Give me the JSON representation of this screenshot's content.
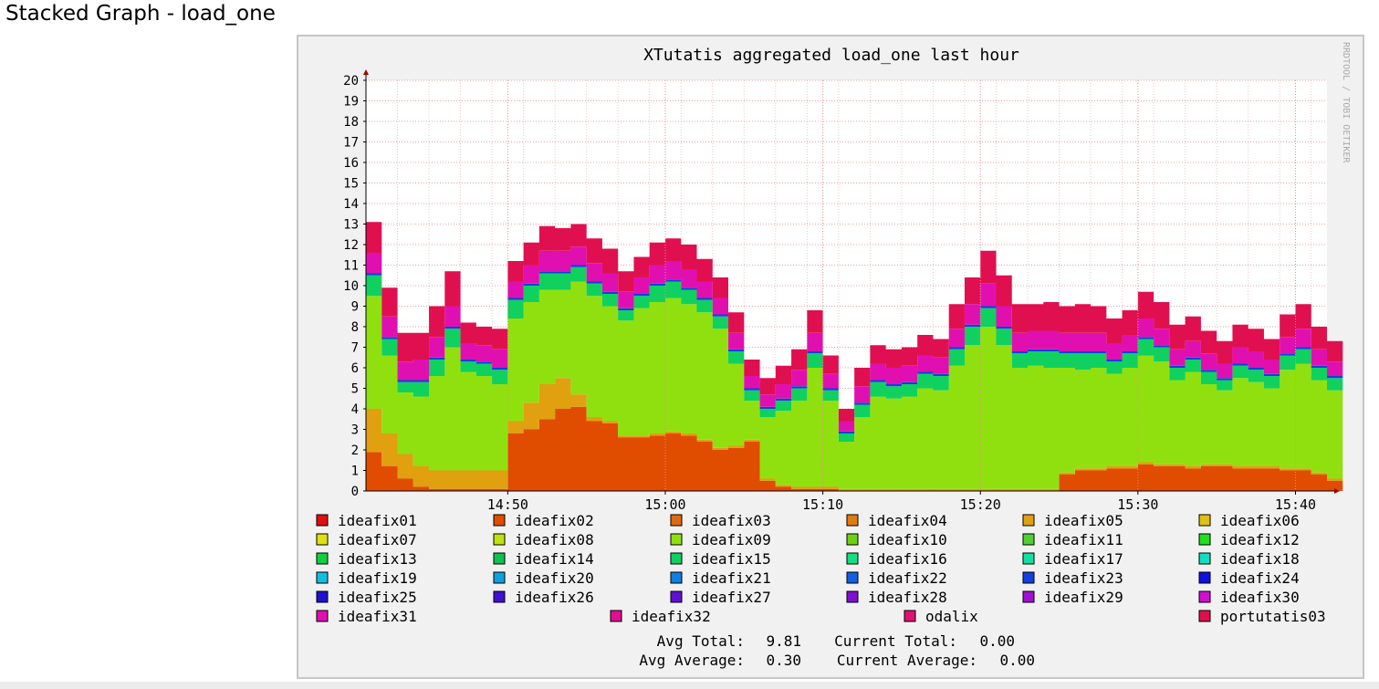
{
  "page": {
    "heading": "Stacked Graph - load_one"
  },
  "watermark": "RRDTOOL / TOBI OETIKER",
  "chart_data": {
    "type": "area",
    "stacked": true,
    "title": "XTutatis aggregated load_one last hour",
    "xlabel": "",
    "ylabel": "",
    "ylim": [
      0,
      20
    ],
    "yticks": [
      0,
      1,
      2,
      3,
      4,
      5,
      6,
      7,
      8,
      9,
      10,
      11,
      12,
      13,
      14,
      15,
      16,
      17,
      18,
      19,
      20
    ],
    "xlim": [
      "14:41",
      "15:42"
    ],
    "xticks": [
      "14:50",
      "15:00",
      "15:10",
      "15:20",
      "15:30",
      "15:40"
    ],
    "grid": true,
    "legend_placement": "bottom",
    "x": [
      "14:41",
      "14:42",
      "14:43",
      "14:44",
      "14:45",
      "14:46",
      "14:47",
      "14:48",
      "14:49",
      "14:50",
      "14:51",
      "14:52",
      "14:53",
      "14:54",
      "14:55",
      "14:56",
      "14:57",
      "14:58",
      "14:59",
      "15:00",
      "15:01",
      "15:02",
      "15:03",
      "15:04",
      "15:05",
      "15:06",
      "15:07",
      "15:08",
      "15:09",
      "15:10",
      "15:11",
      "15:12",
      "15:13",
      "15:14",
      "15:15",
      "15:16",
      "15:17",
      "15:18",
      "15:19",
      "15:20",
      "15:21",
      "15:22",
      "15:23",
      "15:24",
      "15:25",
      "15:26",
      "15:27",
      "15:28",
      "15:29",
      "15:30",
      "15:31",
      "15:32",
      "15:33",
      "15:34",
      "15:35",
      "15:36",
      "15:37",
      "15:38",
      "15:39",
      "15:40",
      "15:41",
      "15:42"
    ],
    "legend": [
      {
        "name": "ideafix01",
        "color": "#e01010"
      },
      {
        "name": "ideafix02",
        "color": "#e04c00"
      },
      {
        "name": "ideafix03",
        "color": "#e06a10"
      },
      {
        "name": "ideafix04",
        "color": "#e07c10"
      },
      {
        "name": "ideafix05",
        "color": "#e0a010"
      },
      {
        "name": "ideafix06",
        "color": "#e0c010"
      },
      {
        "name": "ideafix07",
        "color": "#e0e010"
      },
      {
        "name": "ideafix08",
        "color": "#c0e010"
      },
      {
        "name": "ideafix09",
        "color": "#90e010"
      },
      {
        "name": "ideafix10",
        "color": "#70d010"
      },
      {
        "name": "ideafix11",
        "color": "#50d030"
      },
      {
        "name": "ideafix12",
        "color": "#20e020"
      },
      {
        "name": "ideafix13",
        "color": "#10d040"
      },
      {
        "name": "ideafix14",
        "color": "#10c050"
      },
      {
        "name": "ideafix15",
        "color": "#10d060"
      },
      {
        "name": "ideafix16",
        "color": "#10e080"
      },
      {
        "name": "ideafix17",
        "color": "#10e0a0"
      },
      {
        "name": "ideafix18",
        "color": "#10e0c0"
      },
      {
        "name": "ideafix19",
        "color": "#10c0e0"
      },
      {
        "name": "ideafix20",
        "color": "#10a0e0"
      },
      {
        "name": "ideafix21",
        "color": "#1080e0"
      },
      {
        "name": "ideafix22",
        "color": "#1060e0"
      },
      {
        "name": "ideafix23",
        "color": "#1040e0"
      },
      {
        "name": "ideafix24",
        "color": "#1010e0"
      },
      {
        "name": "ideafix25",
        "color": "#2010d0"
      },
      {
        "name": "ideafix26",
        "color": "#4010d0"
      },
      {
        "name": "ideafix27",
        "color": "#6010d0"
      },
      {
        "name": "ideafix28",
        "color": "#8010d0"
      },
      {
        "name": "ideafix29",
        "color": "#a010d0"
      },
      {
        "name": "ideafix30",
        "color": "#d010d0"
      },
      {
        "name": "ideafix31",
        "color": "#e010b0"
      },
      {
        "name": "ideafix32",
        "color": "#e01090"
      },
      {
        "name": "odalix",
        "color": "#e01070"
      },
      {
        "name": "portutatis03",
        "color": "#e01050"
      }
    ],
    "series": [
      {
        "name": "ideafix02",
        "color": "#e04c00",
        "values": [
          1.9,
          1.2,
          0.6,
          0.2,
          0.1,
          0.1,
          0.1,
          0.1,
          0.1,
          2.8,
          3.0,
          3.5,
          4.0,
          4.1,
          3.4,
          3.3,
          2.6,
          2.6,
          2.7,
          2.8,
          2.7,
          2.4,
          2.0,
          2.1,
          2.4,
          0.5,
          0.2,
          0.1,
          0.1,
          0.1,
          0.0,
          0.0,
          0.0,
          0.0,
          0.0,
          0.0,
          0.0,
          0.0,
          0.0,
          0.0,
          0.0,
          0.0,
          0.0,
          0.0,
          0.8,
          1.0,
          1.0,
          1.1,
          1.1,
          1.3,
          1.2,
          1.2,
          1.1,
          1.2,
          1.2,
          1.1,
          1.1,
          1.1,
          1.0,
          1.0,
          0.8,
          0.5
        ]
      },
      {
        "name": "ideafix05",
        "color": "#e0a010",
        "values": [
          2.1,
          1.6,
          1.2,
          1.0,
          0.9,
          0.9,
          0.9,
          0.9,
          0.9,
          0.6,
          1.3,
          1.7,
          1.5,
          0.6,
          0.2,
          0.1,
          0.1,
          0.1,
          0.1,
          0.1,
          0.1,
          0.1,
          0.1,
          0.1,
          0.1,
          0.1,
          0.1,
          0.1,
          0.1,
          0.1,
          0.1,
          0.1,
          0.1,
          0.1,
          0.1,
          0.1,
          0.1,
          0.1,
          0.1,
          0.1,
          0.1,
          0.1,
          0.1,
          0.1,
          0.1,
          0.1,
          0.1,
          0.1,
          0.1,
          0.1,
          0.1,
          0.1,
          0.1,
          0.1,
          0.1,
          0.1,
          0.1,
          0.1,
          0.1,
          0.1,
          0.1,
          0.1
        ]
      },
      {
        "name": "ideafix09",
        "color": "#90e010",
        "values": [
          5.5,
          3.8,
          3.0,
          3.4,
          4.6,
          6.0,
          4.8,
          4.6,
          4.2,
          5.0,
          4.9,
          4.6,
          4.3,
          5.5,
          5.9,
          5.6,
          5.6,
          6.2,
          6.4,
          6.5,
          6.3,
          6.2,
          5.8,
          4.0,
          1.9,
          3.0,
          3.6,
          4.2,
          5.8,
          4.2,
          2.3,
          3.5,
          4.5,
          4.4,
          4.5,
          4.9,
          4.8,
          6.0,
          7.0,
          7.9,
          7.0,
          5.9,
          6.0,
          5.9,
          5.1,
          4.8,
          4.9,
          4.5,
          4.8,
          5.2,
          5.0,
          4.1,
          4.6,
          3.9,
          3.6,
          4.3,
          4.1,
          3.8,
          4.8,
          5.1,
          4.5,
          4.3
        ]
      },
      {
        "name": "ideafix15",
        "color": "#10d060",
        "values": [
          1.0,
          0.8,
          0.5,
          0.7,
          0.8,
          0.9,
          0.5,
          0.6,
          0.7,
          0.9,
          0.8,
          0.8,
          0.8,
          0.7,
          0.6,
          0.6,
          0.5,
          0.6,
          0.8,
          0.8,
          0.7,
          0.6,
          0.6,
          0.6,
          0.5,
          0.4,
          0.5,
          0.6,
          0.7,
          0.5,
          0.4,
          0.6,
          0.7,
          0.6,
          0.6,
          0.7,
          0.7,
          0.8,
          0.9,
          0.9,
          0.8,
          0.7,
          0.7,
          0.8,
          0.7,
          0.8,
          0.7,
          0.6,
          0.7,
          0.8,
          0.7,
          0.6,
          0.6,
          0.6,
          0.5,
          0.6,
          0.6,
          0.6,
          0.7,
          0.7,
          0.6,
          0.6
        ]
      },
      {
        "name": "ideafix23",
        "color": "#1040e0",
        "values": [
          0.1,
          0.1,
          0.1,
          0.1,
          0.1,
          0.1,
          0.1,
          0.1,
          0.1,
          0.1,
          0.1,
          0.1,
          0.1,
          0.1,
          0.1,
          0.1,
          0.1,
          0.1,
          0.1,
          0.1,
          0.1,
          0.1,
          0.1,
          0.1,
          0.1,
          0.1,
          0.1,
          0.1,
          0.1,
          0.1,
          0.1,
          0.1,
          0.1,
          0.1,
          0.1,
          0.1,
          0.1,
          0.1,
          0.1,
          0.1,
          0.1,
          0.1,
          0.1,
          0.1,
          0.1,
          0.1,
          0.1,
          0.1,
          0.1,
          0.1,
          0.1,
          0.1,
          0.1,
          0.1,
          0.1,
          0.1,
          0.1,
          0.1,
          0.1,
          0.1,
          0.1,
          0.1
        ]
      },
      {
        "name": "ideafix31",
        "color": "#e010b0",
        "values": [
          1.0,
          1.0,
          0.9,
          1.0,
          1.0,
          1.0,
          0.8,
          0.8,
          0.9,
          0.8,
          0.9,
          1.0,
          1.0,
          0.9,
          0.9,
          0.9,
          0.8,
          0.8,
          0.9,
          0.9,
          0.9,
          0.8,
          0.8,
          0.8,
          0.6,
          0.6,
          0.7,
          0.8,
          0.9,
          0.7,
          0.5,
          0.8,
          0.8,
          0.8,
          0.8,
          0.8,
          0.8,
          0.9,
          1.0,
          1.1,
          1.0,
          0.9,
          0.9,
          0.9,
          0.9,
          0.9,
          0.9,
          0.8,
          0.8,
          0.9,
          0.8,
          0.8,
          0.8,
          0.8,
          0.7,
          0.8,
          0.8,
          0.7,
          0.8,
          0.9,
          0.8,
          0.7
        ]
      },
      {
        "name": "portutatis03",
        "color": "#e01050",
        "values": [
          1.5,
          1.4,
          1.4,
          1.3,
          1.5,
          1.7,
          1.0,
          0.9,
          1.0,
          1.0,
          1.1,
          1.2,
          1.1,
          1.1,
          1.2,
          1.2,
          1.0,
          1.0,
          1.1,
          1.1,
          1.2,
          1.1,
          1.0,
          1.0,
          0.8,
          0.8,
          0.9,
          1.0,
          1.1,
          0.9,
          0.6,
          0.9,
          0.9,
          0.9,
          0.9,
          1.0,
          0.9,
          1.2,
          1.3,
          1.6,
          1.5,
          1.4,
          1.3,
          1.4,
          1.3,
          1.4,
          1.3,
          1.2,
          1.2,
          1.3,
          1.3,
          1.2,
          1.2,
          1.1,
          1.1,
          1.1,
          1.1,
          1.0,
          1.1,
          1.2,
          1.1,
          1.0
        ]
      }
    ],
    "summary": {
      "avg_total_label": "Avg Total:",
      "avg_total_value": "9.81",
      "current_total_label": "Current Total:",
      "current_total_value": "0.00",
      "avg_average_label": "Avg Average:",
      "avg_average_value": "0.30",
      "current_average_label": "Current Average:",
      "current_average_value": "0.00"
    }
  }
}
